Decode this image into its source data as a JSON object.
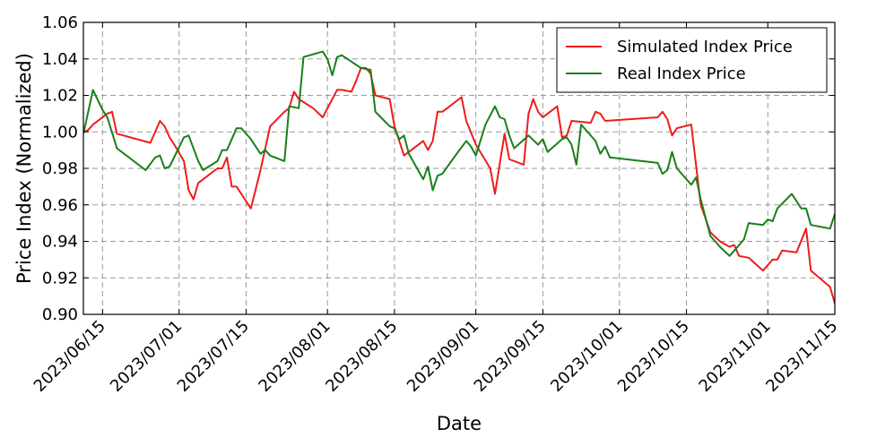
{
  "chart_data": {
    "type": "line",
    "xlabel": "Date",
    "ylabel": "Price Index (Normalized)",
    "xlim": [
      "2023/06/11",
      "2023/11/15"
    ],
    "ylim": [
      0.9,
      1.06
    ],
    "grid": true,
    "legend_position": "top-right",
    "x_ticks": [
      "2023/06/15",
      "2023/07/01",
      "2023/07/15",
      "2023/08/01",
      "2023/08/15",
      "2023/09/01",
      "2023/09/15",
      "2023/10/01",
      "2023/10/15",
      "2023/11/01",
      "2023/11/15"
    ],
    "y_ticks": [
      "0.90",
      "0.92",
      "0.94",
      "0.96",
      "0.98",
      "1.00",
      "1.02",
      "1.04",
      "1.06"
    ],
    "series": [
      {
        "name": "Simulated Index Price",
        "color": "#ee1c1c",
        "points": [
          [
            "2023/06/11",
            1.0
          ],
          [
            "2023/06/12",
            1.001
          ],
          [
            "2023/06/13",
            1.004
          ],
          [
            "2023/06/16",
            1.01
          ],
          [
            "2023/06/17",
            1.011
          ],
          [
            "2023/06/18",
            0.999
          ],
          [
            "2023/06/25",
            0.994
          ],
          [
            "2023/06/27",
            1.006
          ],
          [
            "2023/06/28",
            1.003
          ],
          [
            "2023/06/29",
            0.997
          ],
          [
            "2023/06/30",
            0.993
          ],
          [
            "2023/07/02",
            0.984
          ],
          [
            "2023/07/03",
            0.968
          ],
          [
            "2023/07/04",
            0.963
          ],
          [
            "2023/07/05",
            0.972
          ],
          [
            "2023/07/07",
            0.976
          ],
          [
            "2023/07/09",
            0.98
          ],
          [
            "2023/07/10",
            0.98
          ],
          [
            "2023/07/11",
            0.986
          ],
          [
            "2023/07/12",
            0.97
          ],
          [
            "2023/07/13",
            0.97
          ],
          [
            "2023/07/16",
            0.958
          ],
          [
            "2023/07/18",
            0.979
          ],
          [
            "2023/07/20",
            1.003
          ],
          [
            "2023/07/23",
            1.011
          ],
          [
            "2023/07/24",
            1.013
          ],
          [
            "2023/07/25",
            1.022
          ],
          [
            "2023/07/26",
            1.018
          ],
          [
            "2023/07/29",
            1.013
          ],
          [
            "2023/07/31",
            1.008
          ],
          [
            "2023/08/02",
            1.018
          ],
          [
            "2023/08/03",
            1.023
          ],
          [
            "2023/08/04",
            1.023
          ],
          [
            "2023/08/06",
            1.022
          ],
          [
            "2023/08/07",
            1.028
          ],
          [
            "2023/08/08",
            1.035
          ],
          [
            "2023/08/09",
            1.035
          ],
          [
            "2023/08/10",
            1.032
          ],
          [
            "2023/08/11",
            1.02
          ],
          [
            "2023/08/14",
            1.018
          ],
          [
            "2023/08/15",
            1.003
          ],
          [
            "2023/08/17",
            0.987
          ],
          [
            "2023/08/21",
            0.995
          ],
          [
            "2023/08/22",
            0.99
          ],
          [
            "2023/08/23",
            0.995
          ],
          [
            "2023/08/24",
            1.011
          ],
          [
            "2023/08/25",
            1.011
          ],
          [
            "2023/08/26",
            1.013
          ],
          [
            "2023/08/29",
            1.019
          ],
          [
            "2023/08/30",
            1.006
          ],
          [
            "2023/09/01",
            0.993
          ],
          [
            "2023/09/04",
            0.98
          ],
          [
            "2023/09/05",
            0.966
          ],
          [
            "2023/09/07",
            0.999
          ],
          [
            "2023/09/08",
            0.985
          ],
          [
            "2023/09/11",
            0.982
          ],
          [
            "2023/09/12",
            1.01
          ],
          [
            "2023/09/13",
            1.018
          ],
          [
            "2023/09/14",
            1.011
          ],
          [
            "2023/09/15",
            1.008
          ],
          [
            "2023/09/18",
            1.014
          ],
          [
            "2023/09/19",
            0.997
          ],
          [
            "2023/09/20",
            0.998
          ],
          [
            "2023/09/21",
            1.006
          ],
          [
            "2023/09/25",
            1.005
          ],
          [
            "2023/09/26",
            1.011
          ],
          [
            "2023/09/27",
            1.01
          ],
          [
            "2023/09/28",
            1.006
          ],
          [
            "2023/10/09",
            1.008
          ],
          [
            "2023/10/10",
            1.011
          ],
          [
            "2023/10/11",
            1.007
          ],
          [
            "2023/10/12",
            0.998
          ],
          [
            "2023/10/13",
            1.002
          ],
          [
            "2023/10/16",
            1.004
          ],
          [
            "2023/10/18",
            0.96
          ],
          [
            "2023/10/20",
            0.945
          ],
          [
            "2023/10/22",
            0.94
          ],
          [
            "2023/10/24",
            0.937
          ],
          [
            "2023/10/25",
            0.938
          ],
          [
            "2023/10/26",
            0.932
          ],
          [
            "2023/10/28",
            0.931
          ],
          [
            "2023/10/31",
            0.924
          ],
          [
            "2023/11/01",
            0.927
          ],
          [
            "2023/11/02",
            0.93
          ],
          [
            "2023/11/03",
            0.93
          ],
          [
            "2023/11/04",
            0.935
          ],
          [
            "2023/11/07",
            0.934
          ],
          [
            "2023/11/09",
            0.947
          ],
          [
            "2023/11/10",
            0.924
          ],
          [
            "2023/11/14",
            0.915
          ],
          [
            "2023/11/15",
            0.906
          ],
          [
            "2023/11/16",
            0.906
          ]
        ]
      },
      {
        "name": "Real Index Price",
        "color": "#1a7f1a",
        "points": [
          [
            "2023/06/11",
            0.999
          ],
          [
            "2023/06/13",
            1.023
          ],
          [
            "2023/06/15",
            1.012
          ],
          [
            "2023/06/16",
            1.008
          ],
          [
            "2023/06/18",
            0.991
          ],
          [
            "2023/06/24",
            0.979
          ],
          [
            "2023/06/26",
            0.986
          ],
          [
            "2023/06/27",
            0.987
          ],
          [
            "2023/06/28",
            0.98
          ],
          [
            "2023/06/29",
            0.981
          ],
          [
            "2023/07/02",
            0.997
          ],
          [
            "2023/07/03",
            0.998
          ],
          [
            "2023/07/05",
            0.984
          ],
          [
            "2023/07/06",
            0.979
          ],
          [
            "2023/07/09",
            0.984
          ],
          [
            "2023/07/10",
            0.99
          ],
          [
            "2023/07/11",
            0.99
          ],
          [
            "2023/07/13",
            1.002
          ],
          [
            "2023/07/14",
            1.002
          ],
          [
            "2023/07/16",
            0.996
          ],
          [
            "2023/07/18",
            0.988
          ],
          [
            "2023/07/19",
            0.99
          ],
          [
            "2023/07/20",
            0.987
          ],
          [
            "2023/07/23",
            0.984
          ],
          [
            "2023/07/24",
            1.014
          ],
          [
            "2023/07/26",
            1.013
          ],
          [
            "2023/07/27",
            1.041
          ],
          [
            "2023/07/31",
            1.044
          ],
          [
            "2023/08/01",
            1.04
          ],
          [
            "2023/08/02",
            1.031
          ],
          [
            "2023/08/03",
            1.041
          ],
          [
            "2023/08/04",
            1.042
          ],
          [
            "2023/08/08",
            1.035
          ],
          [
            "2023/08/10",
            1.034
          ],
          [
            "2023/08/11",
            1.011
          ],
          [
            "2023/08/14",
            1.003
          ],
          [
            "2023/08/15",
            1.002
          ],
          [
            "2023/08/16",
            0.996
          ],
          [
            "2023/08/17",
            0.998
          ],
          [
            "2023/08/18",
            0.988
          ],
          [
            "2023/08/21",
            0.974
          ],
          [
            "2023/08/22",
            0.981
          ],
          [
            "2023/08/23",
            0.968
          ],
          [
            "2023/08/24",
            0.976
          ],
          [
            "2023/08/25",
            0.977
          ],
          [
            "2023/08/28",
            0.988
          ],
          [
            "2023/08/30",
            0.995
          ],
          [
            "2023/08/31",
            0.992
          ],
          [
            "2023/09/01",
            0.987
          ],
          [
            "2023/09/03",
            1.004
          ],
          [
            "2023/09/05",
            1.014
          ],
          [
            "2023/09/06",
            1.008
          ],
          [
            "2023/09/07",
            1.007
          ],
          [
            "2023/09/08",
            0.998
          ],
          [
            "2023/09/09",
            0.991
          ],
          [
            "2023/09/12",
            0.998
          ],
          [
            "2023/09/14",
            0.993
          ],
          [
            "2023/09/15",
            0.996
          ],
          [
            "2023/09/16",
            0.989
          ],
          [
            "2023/09/19",
            0.996
          ],
          [
            "2023/09/20",
            0.997
          ],
          [
            "2023/09/21",
            0.993
          ],
          [
            "2023/09/22",
            0.982
          ],
          [
            "2023/09/23",
            1.004
          ],
          [
            "2023/09/26",
            0.995
          ],
          [
            "2023/09/27",
            0.988
          ],
          [
            "2023/09/28",
            0.992
          ],
          [
            "2023/09/29",
            0.986
          ],
          [
            "2023/10/09",
            0.983
          ],
          [
            "2023/10/10",
            0.977
          ],
          [
            "2023/10/11",
            0.979
          ],
          [
            "2023/10/12",
            0.989
          ],
          [
            "2023/10/13",
            0.98
          ],
          [
            "2023/10/16",
            0.971
          ],
          [
            "2023/10/17",
            0.975
          ],
          [
            "2023/10/18",
            0.963
          ],
          [
            "2023/10/20",
            0.943
          ],
          [
            "2023/10/22",
            0.937
          ],
          [
            "2023/10/24",
            0.932
          ],
          [
            "2023/10/27",
            0.941
          ],
          [
            "2023/10/28",
            0.95
          ],
          [
            "2023/10/31",
            0.949
          ],
          [
            "2023/11/01",
            0.952
          ],
          [
            "2023/11/02",
            0.951
          ],
          [
            "2023/11/03",
            0.958
          ],
          [
            "2023/11/06",
            0.966
          ],
          [
            "2023/11/08",
            0.958
          ],
          [
            "2023/11/09",
            0.958
          ],
          [
            "2023/11/10",
            0.949
          ],
          [
            "2023/11/14",
            0.947
          ],
          [
            "2023/11/15",
            0.955
          ]
        ]
      }
    ]
  }
}
